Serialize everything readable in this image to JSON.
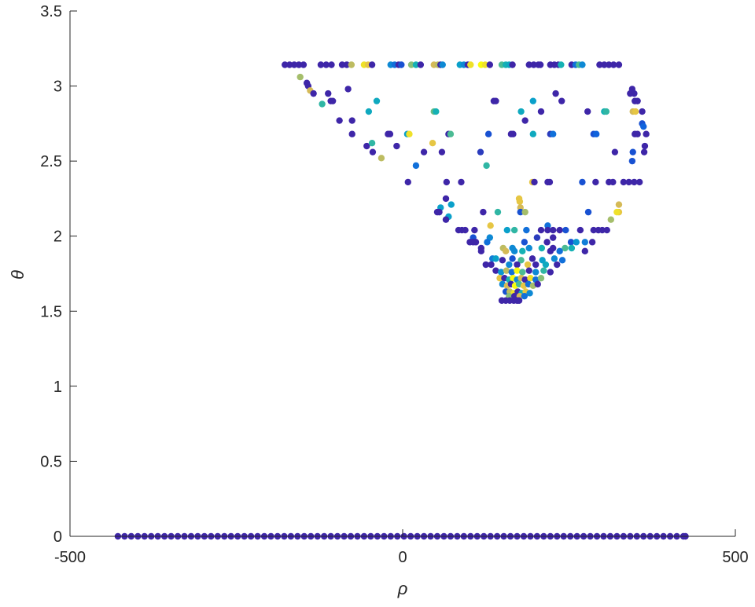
{
  "chart_data": {
    "type": "scatter",
    "xlabel": "ρ",
    "ylabel": "θ",
    "xlim": [
      -500,
      500
    ],
    "ylim": [
      0,
      3.5
    ],
    "xticks": [
      -500,
      0,
      500
    ],
    "yticks": [
      0,
      0.5,
      1,
      1.5,
      2,
      2.5,
      3,
      3.5
    ],
    "xtick_labels": [
      "-500",
      "0",
      "500"
    ],
    "ytick_labels": [
      "0",
      "0.5",
      "1",
      "1.5",
      "2",
      "2.5",
      "3",
      "3.5"
    ],
    "grid": false,
    "box": false,
    "colormap": "parula",
    "colormap_stops": [
      "#3e26a8",
      "#0f5cdd",
      "#127dd8",
      "#079ccf",
      "#15b1b4",
      "#59bd8c",
      "#a5be6b",
      "#e1b952",
      "#f9fb0e"
    ],
    "baseline_series": {
      "theta": 0,
      "color_value": 0,
      "rho": [
        -428,
        -418,
        -408,
        -398,
        -388,
        -378,
        -368,
        -358,
        -348,
        -338,
        -328,
        -318,
        -308,
        -298,
        -288,
        -278,
        -268,
        -258,
        -248,
        -238,
        -228,
        -218,
        -208,
        -198,
        -188,
        -178,
        -168,
        -158,
        -148,
        -138,
        -128,
        -118,
        -108,
        -98,
        -88,
        -78,
        -68,
        -58,
        -48,
        -38,
        -28,
        -18,
        -8,
        2,
        12,
        22,
        32,
        42,
        52,
        62,
        72,
        82,
        92,
        102,
        112,
        122,
        132,
        142,
        152,
        162,
        172,
        182,
        192,
        202,
        212,
        222,
        232,
        242,
        252,
        262,
        272,
        282,
        292,
        302,
        312,
        322,
        332,
        342,
        352,
        362,
        372,
        382,
        392,
        402,
        412,
        422,
        425
      ]
    },
    "points_rho_theta_c": [
      [
        -177,
        3.1416,
        0
      ],
      [
        -170,
        3.1416,
        0
      ],
      [
        -163,
        3.1416,
        0
      ],
      [
        -156,
        3.1416,
        0
      ],
      [
        -149,
        3.1416,
        0
      ],
      [
        -123,
        3.1416,
        0
      ],
      [
        -115,
        3.1416,
        0
      ],
      [
        -107,
        3.1416,
        0
      ],
      [
        -91,
        3.1416,
        0
      ],
      [
        -84,
        3.1416,
        0
      ],
      [
        -77,
        3.1416,
        0.8
      ],
      [
        -58,
        3.1416,
        0.95
      ],
      [
        -52,
        3.1416,
        0.9
      ],
      [
        -46,
        3.1416,
        0
      ],
      [
        -18,
        3.1416,
        0.3
      ],
      [
        -12,
        3.1416,
        0.2
      ],
      [
        -6,
        3.1416,
        0
      ],
      [
        -2,
        3.1416,
        0.1
      ],
      [
        13,
        3.1416,
        0.7
      ],
      [
        20,
        3.1416,
        0.5
      ],
      [
        27,
        3.1416,
        0
      ],
      [
        47,
        3.1416,
        0.85
      ],
      [
        53,
        3.1416,
        0.8
      ],
      [
        57,
        3.1416,
        0
      ],
      [
        60,
        3.1416,
        0.3
      ],
      [
        86,
        3.1416,
        0.4
      ],
      [
        92,
        3.1416,
        0.3
      ],
      [
        98,
        3.1416,
        0
      ],
      [
        102,
        3.1416,
        0.95
      ],
      [
        118,
        3.1416,
        1
      ],
      [
        124,
        3.1416,
        0.95
      ],
      [
        131,
        3.1416,
        0
      ],
      [
        149,
        3.1416,
        0.6
      ],
      [
        155,
        3.1416,
        0.5
      ],
      [
        160,
        3.1416,
        0.45
      ],
      [
        165,
        3.1416,
        0
      ],
      [
        190,
        3.1416,
        0
      ],
      [
        197,
        3.1416,
        0
      ],
      [
        204,
        3.1416,
        0
      ],
      [
        207,
        3.1416,
        0
      ],
      [
        222,
        3.1416,
        0
      ],
      [
        228,
        3.1416,
        0
      ],
      [
        234,
        3.1416,
        0
      ],
      [
        238,
        3.1416,
        0.5
      ],
      [
        254,
        3.1416,
        0
      ],
      [
        260,
        3.1416,
        0.2
      ],
      [
        265,
        3.1416,
        0.6
      ],
      [
        270,
        3.1416,
        0.3
      ],
      [
        296,
        3.1416,
        0
      ],
      [
        303,
        3.1416,
        0
      ],
      [
        310,
        3.1416,
        0
      ],
      [
        317,
        3.1416,
        0
      ],
      [
        325,
        3.1416,
        0
      ],
      [
        -154,
        3.06,
        0.75
      ],
      [
        -144,
        3.02,
        0
      ],
      [
        -142,
        3.0,
        0
      ],
      [
        -139,
        2.97,
        0.85
      ],
      [
        -134,
        2.95,
        0
      ],
      [
        -112,
        2.95,
        0
      ],
      [
        -82,
        2.98,
        0
      ],
      [
        -121,
        2.88,
        0.55
      ],
      [
        -108,
        2.9,
        0
      ],
      [
        -105,
        2.9,
        0
      ],
      [
        -39,
        2.9,
        0.45
      ],
      [
        -51,
        2.83,
        0.45
      ],
      [
        47,
        2.83,
        0.65
      ],
      [
        50,
        2.83,
        0.5
      ],
      [
        -95,
        2.77,
        0
      ],
      [
        -76,
        2.77,
        0
      ],
      [
        -76,
        2.68,
        0
      ],
      [
        -22,
        2.68,
        0
      ],
      [
        -19,
        2.68,
        0
      ],
      [
        7,
        2.68,
        0.4
      ],
      [
        10,
        2.68,
        0.95
      ],
      [
        69,
        2.68,
        0
      ],
      [
        72,
        2.68,
        0.6
      ],
      [
        129,
        2.68,
        0.1
      ],
      [
        163,
        2.68,
        0
      ],
      [
        166,
        2.68,
        0
      ],
      [
        196,
        2.68,
        0.45
      ],
      [
        222,
        2.68,
        0.05
      ],
      [
        226,
        2.68,
        0.2
      ],
      [
        287,
        2.68,
        0.1
      ],
      [
        291,
        2.68,
        0.15
      ],
      [
        349,
        2.68,
        0
      ],
      [
        353,
        2.68,
        0
      ],
      [
        366,
        2.68,
        0
      ],
      [
        -54,
        2.6,
        0
      ],
      [
        -46,
        2.62,
        0.55
      ],
      [
        -9,
        2.6,
        0
      ],
      [
        45,
        2.62,
        0.9
      ],
      [
        -45,
        2.56,
        0
      ],
      [
        -32,
        2.52,
        0.8
      ],
      [
        32,
        2.56,
        0
      ],
      [
        59,
        2.56,
        0
      ],
      [
        117,
        2.56,
        0.05
      ],
      [
        20,
        2.47,
        0.2
      ],
      [
        126,
        2.47,
        0.55
      ],
      [
        319,
        2.56,
        0
      ],
      [
        346,
        2.56,
        0.1
      ],
      [
        363,
        2.56,
        0
      ],
      [
        364,
        2.6,
        0
      ],
      [
        345,
        2.5,
        0.1
      ],
      [
        360,
        2.75,
        0.1
      ],
      [
        362,
        2.73,
        0.15
      ],
      [
        346,
        2.83,
        0.85
      ],
      [
        350,
        2.83,
        0.9
      ],
      [
        360,
        2.83,
        0
      ],
      [
        278,
        2.83,
        0
      ],
      [
        303,
        2.83,
        0.5
      ],
      [
        306,
        2.83,
        0.55
      ],
      [
        208,
        2.83,
        0
      ],
      [
        178,
        2.83,
        0.45
      ],
      [
        184,
        2.77,
        0
      ],
      [
        196,
        2.9,
        0.4
      ],
      [
        137,
        2.9,
        0
      ],
      [
        140,
        2.9,
        0
      ],
      [
        230,
        2.95,
        0
      ],
      [
        239,
        2.9,
        0
      ],
      [
        345,
        2.96,
        0
      ],
      [
        342,
        2.95,
        0
      ],
      [
        348,
        2.95,
        0
      ],
      [
        345,
        2.98,
        0
      ],
      [
        349,
        2.9,
        0
      ],
      [
        353,
        2.9,
        0
      ],
      [
        8,
        2.36,
        0
      ],
      [
        66,
        2.36,
        0
      ],
      [
        88,
        2.36,
        0
      ],
      [
        195,
        2.36,
        0.9
      ],
      [
        198,
        2.36,
        0
      ],
      [
        218,
        2.36,
        0
      ],
      [
        221,
        2.36,
        0
      ],
      [
        270,
        2.36,
        0.1
      ],
      [
        290,
        2.36,
        0
      ],
      [
        310,
        2.36,
        0
      ],
      [
        316,
        2.36,
        0
      ],
      [
        332,
        2.36,
        0
      ],
      [
        340,
        2.36,
        0
      ],
      [
        348,
        2.36,
        0
      ],
      [
        356,
        2.36,
        0
      ],
      [
        65,
        2.25,
        0
      ],
      [
        175,
        2.25,
        0.9
      ],
      [
        176,
        2.23,
        0.9
      ],
      [
        73,
        2.21,
        0.4
      ],
      [
        325,
        2.21,
        0.85
      ],
      [
        57,
        2.19,
        0.4
      ],
      [
        177,
        2.19,
        0.85
      ],
      [
        52,
        2.16,
        0
      ],
      [
        55,
        2.16,
        0
      ],
      [
        121,
        2.16,
        0
      ],
      [
        143,
        2.16,
        0.55
      ],
      [
        177,
        2.16,
        0.1
      ],
      [
        184,
        2.16,
        0.75
      ],
      [
        279,
        2.16,
        0.1
      ],
      [
        325,
        2.16,
        0.9
      ],
      [
        322,
        2.16,
        0.95
      ],
      [
        69,
        2.13,
        0.4
      ],
      [
        65,
        2.11,
        0
      ],
      [
        313,
        2.11,
        0.75
      ],
      [
        218,
        2.07,
        0.2
      ],
      [
        132,
        2.07,
        0.9
      ],
      [
        84,
        2.04,
        0
      ],
      [
        89,
        2.04,
        0
      ],
      [
        94,
        2.04,
        0
      ],
      [
        108,
        2.04,
        0
      ],
      [
        157,
        2.04,
        0.4
      ],
      [
        168,
        2.04,
        0.55
      ],
      [
        186,
        2.04,
        0.2
      ],
      [
        208,
        2.04,
        0
      ],
      [
        218,
        2.04,
        0
      ],
      [
        226,
        2.04,
        0
      ],
      [
        236,
        2.04,
        0
      ],
      [
        245,
        2.04,
        0.1
      ],
      [
        267,
        2.04,
        0
      ],
      [
        287,
        2.04,
        0
      ],
      [
        294,
        2.04,
        0
      ],
      [
        300,
        2.04,
        0
      ],
      [
        307,
        2.04,
        0
      ],
      [
        106,
        1.99,
        0.1
      ],
      [
        131,
        1.99,
        0.3
      ],
      [
        202,
        1.99,
        0.05
      ],
      [
        226,
        1.99,
        0
      ],
      [
        101,
        1.96,
        0
      ],
      [
        106,
        1.96,
        0
      ],
      [
        110,
        1.96,
        0
      ],
      [
        127,
        1.96,
        0.2
      ],
      [
        183,
        1.96,
        0.1
      ],
      [
        217,
        1.96,
        0
      ],
      [
        253,
        1.96,
        0.1
      ],
      [
        261,
        1.96,
        0.35
      ],
      [
        274,
        1.96,
        0.25
      ],
      [
        285,
        1.96,
        0
      ],
      [
        118,
        1.92,
        0
      ],
      [
        151,
        1.92,
        0.8
      ],
      [
        165,
        1.92,
        0.3
      ],
      [
        190,
        1.92,
        0.3
      ],
      [
        209,
        1.92,
        0.5
      ],
      [
        226,
        1.92,
        0
      ],
      [
        244,
        1.92,
        0.6
      ],
      [
        254,
        1.92,
        0.5
      ],
      [
        118,
        1.9,
        0
      ],
      [
        155,
        1.9,
        0.85
      ],
      [
        168,
        1.9,
        0.3
      ],
      [
        180,
        1.9,
        0.5
      ],
      [
        222,
        1.9,
        0
      ],
      [
        236,
        1.9,
        0.2
      ],
      [
        274,
        1.9,
        0
      ],
      [
        135,
        1.85,
        0.25
      ],
      [
        140,
        1.85,
        0.4
      ],
      [
        150,
        1.84,
        0
      ],
      [
        165,
        1.85,
        0.1
      ],
      [
        178,
        1.84,
        0.6
      ],
      [
        195,
        1.85,
        0
      ],
      [
        210,
        1.84,
        0.4
      ],
      [
        228,
        1.85,
        0.3
      ],
      [
        240,
        1.84,
        0.2
      ],
      [
        125,
        1.81,
        0
      ],
      [
        133,
        1.81,
        0
      ],
      [
        160,
        1.81,
        0.3
      ],
      [
        172,
        1.81,
        0
      ],
      [
        188,
        1.81,
        0.9
      ],
      [
        200,
        1.81,
        0
      ],
      [
        215,
        1.81,
        0.45
      ],
      [
        232,
        1.81,
        0
      ],
      [
        140,
        1.77,
        0
      ],
      [
        148,
        1.76,
        0.35
      ],
      [
        156,
        1.77,
        0.8
      ],
      [
        164,
        1.76,
        0.2
      ],
      [
        172,
        1.77,
        1
      ],
      [
        180,
        1.76,
        0.6
      ],
      [
        190,
        1.77,
        0
      ],
      [
        200,
        1.76,
        0.3
      ],
      [
        212,
        1.77,
        0.55
      ],
      [
        222,
        1.76,
        0
      ],
      [
        146,
        1.72,
        0.9
      ],
      [
        153,
        1.72,
        0
      ],
      [
        160,
        1.71,
        0.5
      ],
      [
        166,
        1.72,
        1
      ],
      [
        172,
        1.71,
        0.3
      ],
      [
        178,
        1.72,
        0.85
      ],
      [
        184,
        1.71,
        0
      ],
      [
        192,
        1.72,
        0.95
      ],
      [
        200,
        1.71,
        0.2
      ],
      [
        208,
        1.72,
        0.7
      ],
      [
        150,
        1.68,
        0.3
      ],
      [
        157,
        1.67,
        0.85
      ],
      [
        163,
        1.68,
        0
      ],
      [
        169,
        1.67,
        1
      ],
      [
        175,
        1.68,
        0.6
      ],
      [
        182,
        1.67,
        0.9
      ],
      [
        189,
        1.68,
        0.2
      ],
      [
        196,
        1.67,
        0.75
      ],
      [
        203,
        1.68,
        0
      ],
      [
        155,
        1.63,
        0.1
      ],
      [
        161,
        1.63,
        0.8
      ],
      [
        167,
        1.62,
        0.95
      ],
      [
        173,
        1.63,
        0
      ],
      [
        179,
        1.62,
        0.5
      ],
      [
        185,
        1.63,
        0.9
      ],
      [
        191,
        1.62,
        0.3
      ],
      [
        160,
        1.6,
        0.7
      ],
      [
        168,
        1.6,
        0
      ],
      [
        176,
        1.6,
        0.85
      ],
      [
        183,
        1.6,
        0.2
      ],
      [
        149,
        1.5708,
        0
      ],
      [
        155,
        1.5708,
        0
      ],
      [
        161,
        1.5708,
        0
      ],
      [
        167,
        1.5708,
        0
      ],
      [
        172,
        1.5708,
        0
      ],
      [
        175,
        1.5708,
        0
      ]
    ]
  }
}
